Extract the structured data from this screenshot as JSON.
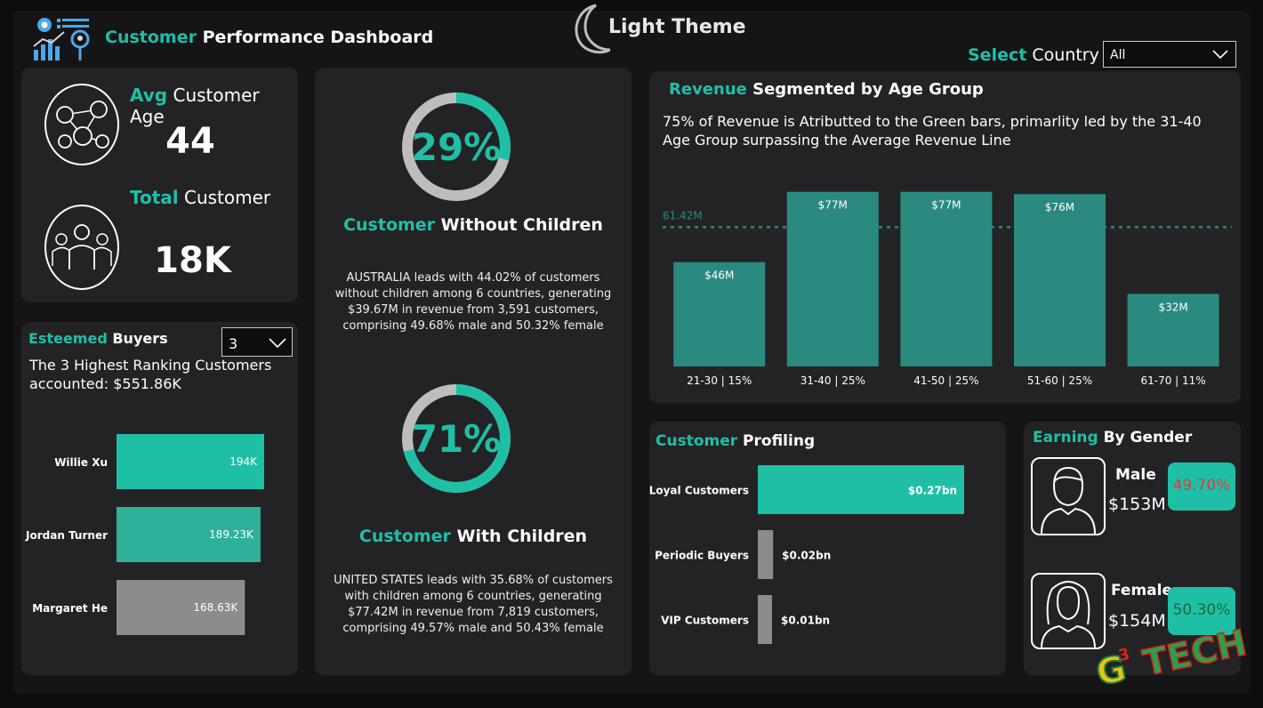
{
  "header": {
    "title_accent": "Customer",
    "title_rest": " Performance Dashboard",
    "theme_label": "Light Theme",
    "select_accent": "Select",
    "select_rest": " Country",
    "country_value": "All"
  },
  "kpis": {
    "age_accent": "Avg",
    "age_rest": " Customer Age",
    "age_value": "44",
    "total_accent": "Total",
    "total_rest": " Customer",
    "total_value": "18K"
  },
  "esteemed": {
    "title_accent": "Esteemed",
    "title_rest": " Buyers",
    "select_value": "3",
    "subtitle": "The 3 Highest Ranking Customers accounted: $551.86K",
    "bars": [
      {
        "name": "Willie Xu",
        "value": 194,
        "label": "194K",
        "color": "#1fbfa6"
      },
      {
        "name": "Jordan Turner",
        "value": 189.23,
        "label": "189.23K",
        "color": "#2fb09b"
      },
      {
        "name": "Margaret He",
        "value": 168.63,
        "label": "168.63K",
        "color": "#8c8c8c"
      }
    ]
  },
  "children": {
    "without_pct": 29,
    "without_label": "29%",
    "without_title_accent": "Customer",
    "without_title_rest": " Without Children",
    "without_text": "AUSTRALIA leads with 44.02% of customers without children among 6 countries, generating $39.67M in revenue from 3,591 customers, comprising 49.68% male and 50.32% female",
    "with_pct": 71,
    "with_label": "71%",
    "with_title_accent": "Customer",
    "with_title_rest": " With Children",
    "with_text": "UNITED STATES leads with 35.68% of customers with children among 6 countries, generating $77.42M in revenue from 7,819 customers, comprising 49.57% male and 50.43% female"
  },
  "revenue": {
    "title_accent": "Revenue",
    "title_rest": " Segmented by Age Group",
    "subtitle": "75% of Revenue is Atributted to the Green bars, primarlity led by the 31-40 Age Group surpassing the Average Revenue Line"
  },
  "chart_data": {
    "type": "bar",
    "categories": [
      "21-30 | 15%",
      "31-40 | 25%",
      "41-50 | 25%",
      "51-60 | 25%",
      "61-70 | 11%"
    ],
    "values": [
      46,
      77,
      77,
      76,
      32
    ],
    "data_labels": [
      "$46M",
      "$77M",
      "$77M",
      "$76M",
      "$32M"
    ],
    "reference_line": {
      "value": 61.42,
      "label": "61.42M"
    },
    "ylim": [
      0,
      80
    ],
    "color": "#2a8a80",
    "title": "Revenue Segmented by Age Group",
    "xlabel": "",
    "ylabel": ""
  },
  "profiling": {
    "title_accent": "Customer",
    "title_rest": " Profiling",
    "bars": [
      {
        "name": "Loyal Customers",
        "value": 0.27,
        "label": "$0.27bn",
        "color": "#1fbfa6"
      },
      {
        "name": "Periodic Buyers",
        "value": 0.02,
        "label": "$0.02bn",
        "color": "#8c8c8c"
      },
      {
        "name": "VIP Customers",
        "value": 0.01,
        "label": "$0.01bn",
        "color": "#8c8c8c"
      }
    ]
  },
  "gender": {
    "title_accent": "Earning",
    "title_rest": " By Gender",
    "male_label": "Male",
    "male_value": "$153M",
    "male_pct": "49.70%",
    "female_label": "Female",
    "female_value": "$154M",
    "female_pct": "50.30%"
  },
  "watermark": "G3 TECH"
}
